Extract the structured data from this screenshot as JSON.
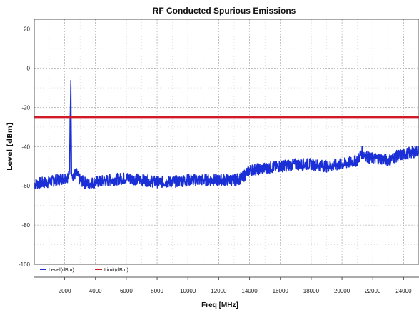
{
  "chart_data": {
    "type": "line",
    "title": "RF Conducted Spurious Emissions",
    "xlabel": "Freq [MHz]",
    "ylabel": "Level [dBm]",
    "xlim": [
      30,
      25000
    ],
    "ylim": [
      -100,
      25
    ],
    "x_ticks": [
      2000,
      4000,
      6000,
      8000,
      10000,
      12000,
      14000,
      16000,
      18000,
      20000,
      22000,
      24000
    ],
    "y_ticks": [
      20,
      0,
      -20,
      -40,
      -60,
      -80,
      -100
    ],
    "grid": true,
    "legend_position": "bottom-left",
    "series": [
      {
        "name": "Level(dBm)",
        "color": "#1a2fd6",
        "x": [
          30,
          500,
          1000,
          1500,
          2000,
          2300,
          2400,
          2450,
          2500,
          2800,
          3000,
          3500,
          4000,
          5000,
          6000,
          7000,
          8000,
          9000,
          10000,
          11000,
          12000,
          13000,
          13500,
          14000,
          15000,
          16000,
          17000,
          18000,
          19000,
          20000,
          21000,
          21300,
          21800,
          22500,
          23000,
          23500,
          24000,
          24500,
          25000
        ],
        "y": [
          -59,
          -58.5,
          -58,
          -57,
          -56,
          -55,
          -6,
          -55,
          -54.5,
          -54,
          -57,
          -59,
          -58,
          -57,
          -56,
          -57,
          -58,
          -58,
          -57,
          -57,
          -57,
          -57,
          -56,
          -52,
          -51,
          -50,
          -49,
          -49,
          -50,
          -49,
          -47,
          -43,
          -46,
          -46,
          -47,
          -45,
          -44,
          -43,
          -42
        ]
      },
      {
        "name": "Limit(dBm)",
        "color": "#d01a28",
        "x": [
          30,
          25000
        ],
        "y": [
          -25,
          -25
        ]
      }
    ]
  }
}
